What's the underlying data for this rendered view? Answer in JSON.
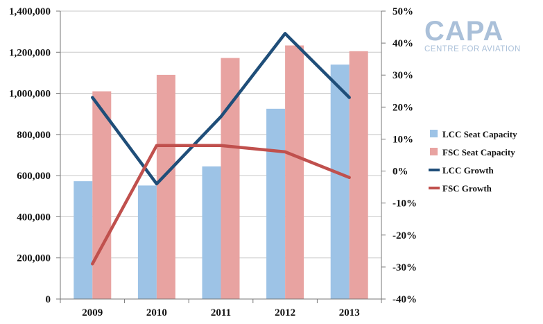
{
  "chart_data": {
    "type": "bar",
    "categories": [
      "2009",
      "2010",
      "2011",
      "2012",
      "2013"
    ],
    "series": [
      {
        "name": "LCC Seat Capacity",
        "kind": "bar",
        "axis": "left",
        "color": "#9dc3e6",
        "values": [
          573000,
          552000,
          645000,
          925000,
          1140000
        ]
      },
      {
        "name": "FSC Seat Capacity",
        "kind": "bar",
        "axis": "left",
        "color": "#e8a3a1",
        "values": [
          1010000,
          1090000,
          1172000,
          1233000,
          1205000
        ]
      },
      {
        "name": "LCC Growth",
        "kind": "line",
        "axis": "right",
        "color": "#1f4e79",
        "values": [
          23,
          -4,
          17,
          43,
          23
        ]
      },
      {
        "name": "FSC Growth",
        "kind": "line",
        "axis": "right",
        "color": "#c0504d",
        "values": [
          -29,
          8,
          8,
          6,
          -2
        ]
      }
    ],
    "y_left": {
      "min": 0,
      "max": 1400000,
      "step": 200000,
      "tick_labels": [
        "0",
        "200,000",
        "400,000",
        "600,000",
        "800,000",
        "1,000,000",
        "1,200,000",
        "1,400,000"
      ]
    },
    "y_right": {
      "min": -40,
      "max": 50,
      "step": 10,
      "tick_labels": [
        "-40%",
        "-30%",
        "-20%",
        "-10%",
        "0%",
        "10%",
        "20%",
        "30%",
        "40%",
        "50%"
      ]
    },
    "grid": true,
    "legend_position": "right"
  },
  "logo": {
    "name": "CAPA",
    "tagline": "CENTRE FOR AVIATION"
  }
}
